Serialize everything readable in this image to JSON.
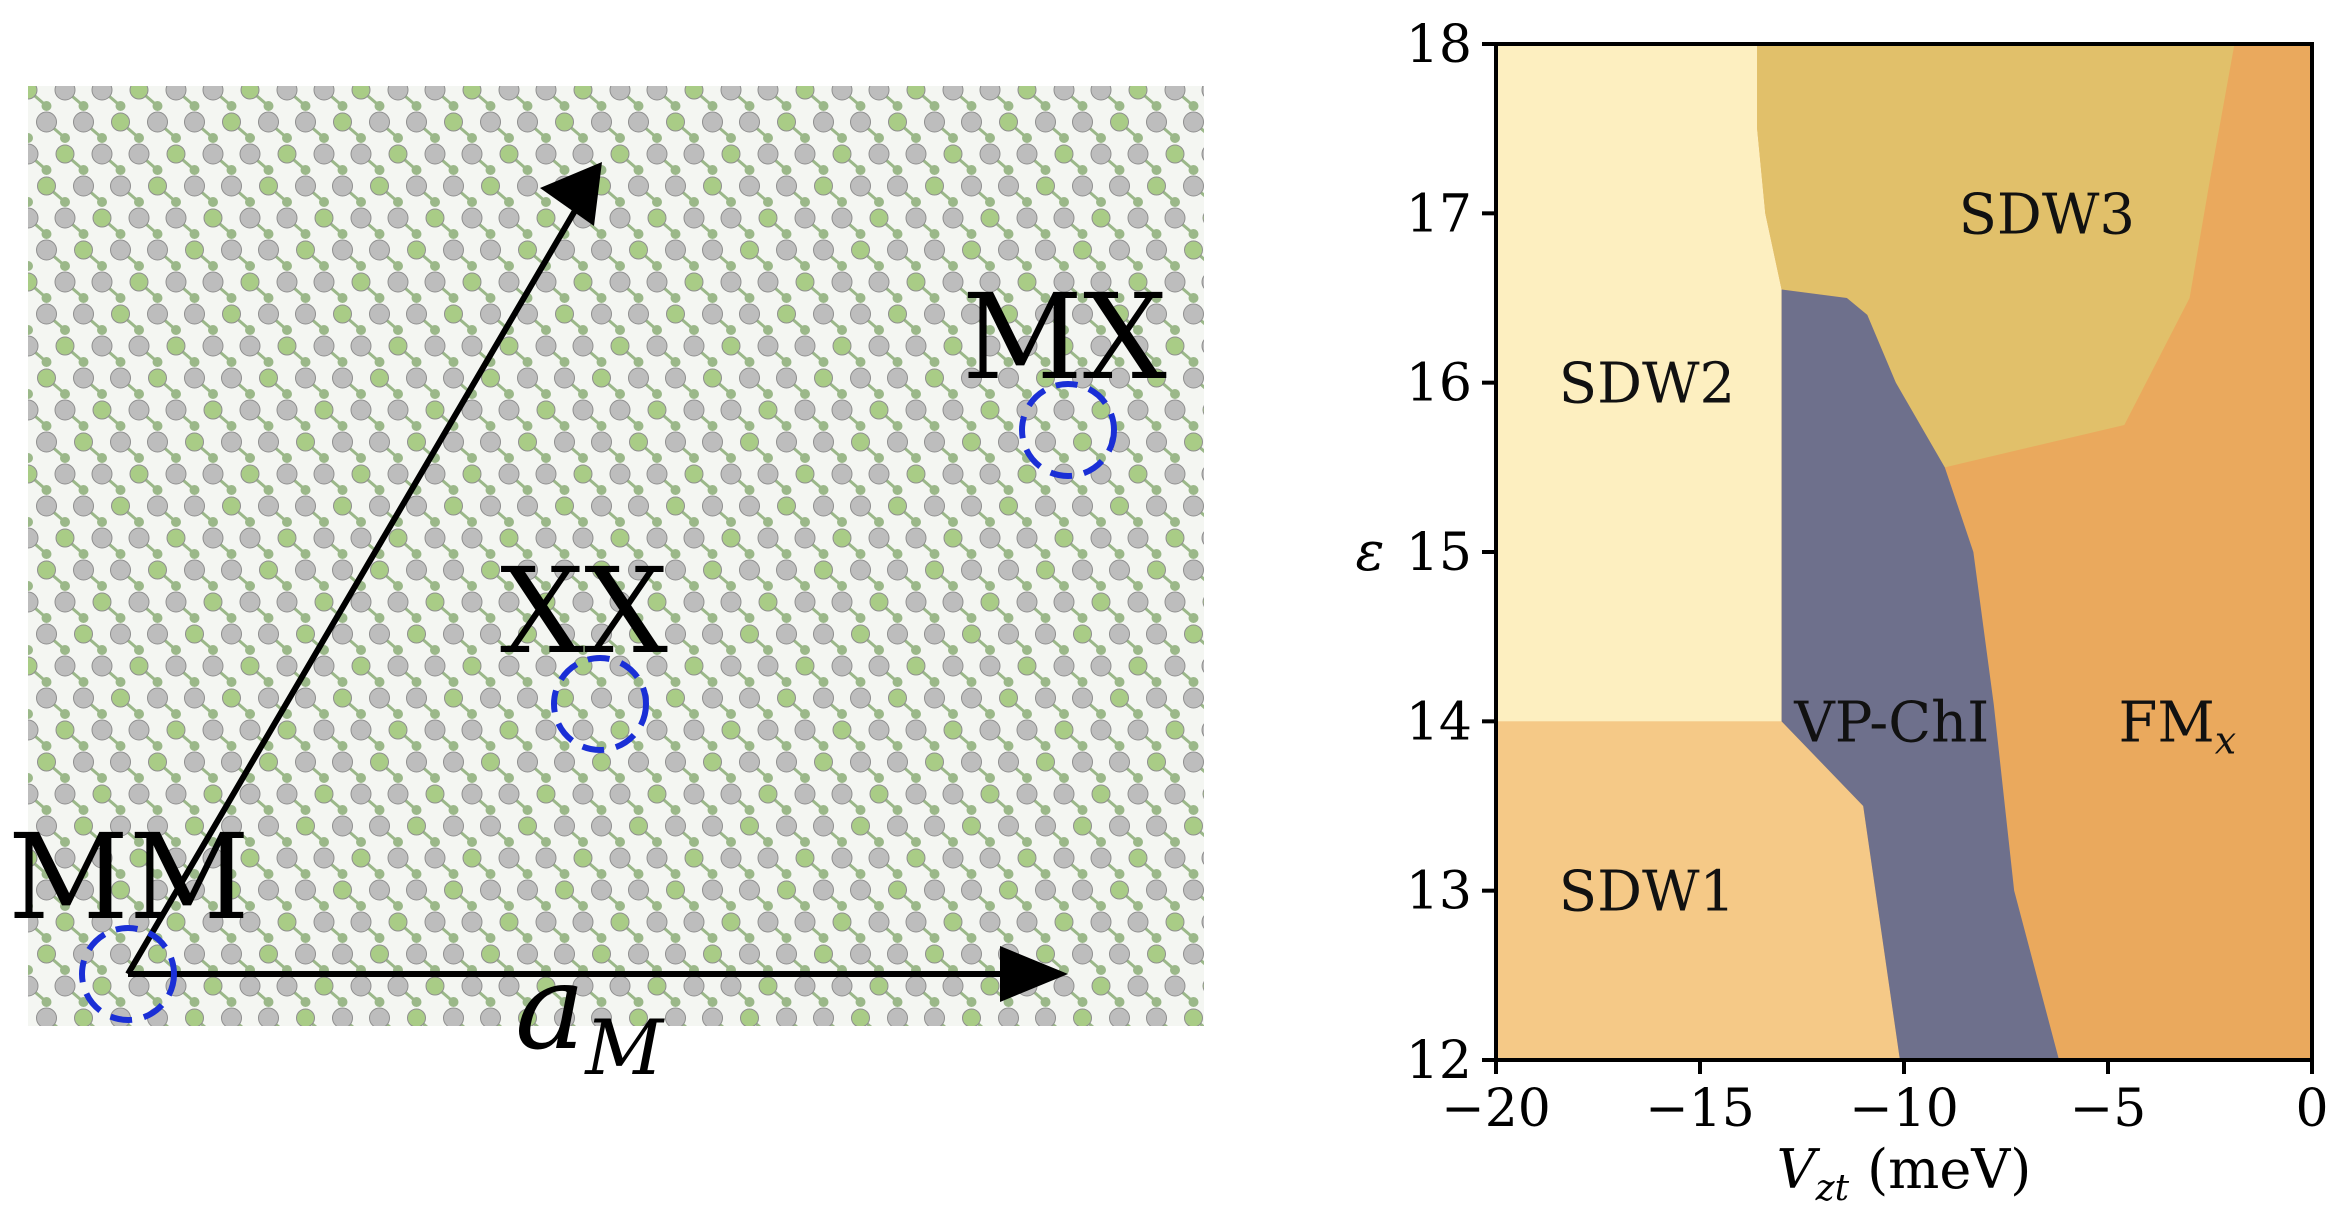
{
  "lattice": {
    "site_labels": {
      "mm": "MM",
      "xx": "XX",
      "mx": "MX"
    },
    "vector_label": {
      "main": "a",
      "sub": "M"
    },
    "colors": {
      "atom": "#bdbdbd",
      "bond": "#9bb889",
      "green_atom": "#a9cc86",
      "circle": "#1a2fd6",
      "arrow": "#000000"
    }
  },
  "chart_data": {
    "type": "area",
    "title": "",
    "xlabel": {
      "main": "V",
      "sub": "zt",
      "unit": "(meV)"
    },
    "ylabel": "ε",
    "xlim": [
      -20,
      0
    ],
    "ylim": [
      12,
      18
    ],
    "xticks": [
      -20,
      -15,
      -10,
      -5,
      0
    ],
    "xtick_labels": [
      "−20",
      "−15",
      "−10",
      "−5",
      "0"
    ],
    "yticks": [
      12,
      13,
      14,
      15,
      16,
      17,
      18
    ],
    "ytick_labels": [
      "12",
      "13",
      "14",
      "15",
      "16",
      "17",
      "18"
    ],
    "grid": false,
    "background_color": "#eaa95d",
    "regions": [
      {
        "name": "SDW1",
        "color": "#f5c987",
        "label_at": [
          -16.3,
          13.0
        ],
        "polygon": [
          [
            -20,
            12
          ],
          [
            -20,
            14
          ],
          [
            -13.0,
            14
          ],
          [
            -11.0,
            13.5
          ],
          [
            -10.1,
            12
          ]
        ]
      },
      {
        "name": "SDW2",
        "color": "#fdefc0",
        "label_at": [
          -16.3,
          16.0
        ],
        "polygon": [
          [
            -20,
            14
          ],
          [
            -20,
            18
          ],
          [
            -13.6,
            18
          ],
          [
            -13.6,
            17.5
          ],
          [
            -13.4,
            17.0
          ],
          [
            -13.0,
            16.55
          ],
          [
            -13.0,
            14
          ]
        ]
      },
      {
        "name": "SDW3",
        "color": "#e1c06a",
        "label_at": [
          -6.5,
          17.0
        ],
        "polygon": [
          [
            -13.6,
            18
          ],
          [
            -1.9,
            18
          ],
          [
            -2.5,
            17.2
          ],
          [
            -3.0,
            16.5
          ],
          [
            -4.6,
            15.75
          ],
          [
            -9.0,
            15.5
          ],
          [
            -10.2,
            16.0
          ],
          [
            -10.9,
            16.4
          ],
          [
            -11.4,
            16.5
          ],
          [
            -13.0,
            16.55
          ],
          [
            -13.4,
            17.0
          ],
          [
            -13.6,
            17.5
          ]
        ]
      },
      {
        "name": "VP-ChI",
        "color": "#6e708c",
        "label_at": [
          -10.3,
          14.0
        ],
        "polygon": [
          [
            -13.0,
            16.55
          ],
          [
            -11.4,
            16.5
          ],
          [
            -10.9,
            16.4
          ],
          [
            -10.2,
            16.0
          ],
          [
            -9.0,
            15.5
          ],
          [
            -8.3,
            15.0
          ],
          [
            -7.8,
            14.1
          ],
          [
            -7.3,
            13.0
          ],
          [
            -6.2,
            12
          ],
          [
            -10.1,
            12
          ],
          [
            -11.0,
            13.5
          ],
          [
            -13.0,
            14
          ]
        ]
      }
    ],
    "annotations": [
      {
        "text_main": "FM",
        "text_sub": "x",
        "at": [
          -3.3,
          14.0
        ]
      }
    ]
  }
}
